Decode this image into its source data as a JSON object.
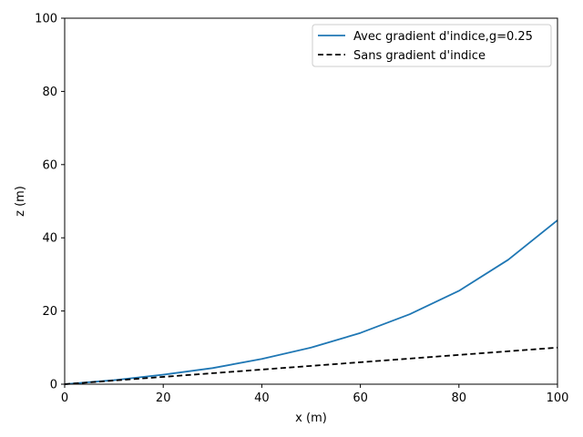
{
  "chart_data": {
    "type": "line",
    "xlabel": "x (m)",
    "ylabel": "z (m)",
    "xlim": [
      0,
      100
    ],
    "ylim": [
      0,
      100
    ],
    "x_ticks": [
      0,
      20,
      40,
      60,
      80,
      100
    ],
    "y_ticks": [
      0,
      20,
      40,
      60,
      80,
      100
    ],
    "x_tick_labels": [
      "0",
      "20",
      "40",
      "60",
      "80",
      "100"
    ],
    "y_tick_labels": [
      "0",
      "20",
      "40",
      "60",
      "80",
      "100"
    ],
    "grid": false,
    "legend_position": "top-right",
    "series": [
      {
        "name": "Avec gradient d'indice,g=0.25",
        "color": "#1f77b4",
        "style": "solid",
        "x": [
          0,
          10,
          20,
          30,
          40,
          50,
          60,
          70,
          80,
          90,
          100
        ],
        "y": [
          0,
          1.1,
          2.6,
          4.4,
          6.9,
          10.0,
          14.0,
          19.1,
          25.5,
          34.0,
          44.8
        ]
      },
      {
        "name": "Sans gradient d'indice",
        "color": "#000000",
        "style": "dashed",
        "x": [
          0,
          100
        ],
        "y": [
          0,
          10
        ]
      }
    ]
  }
}
